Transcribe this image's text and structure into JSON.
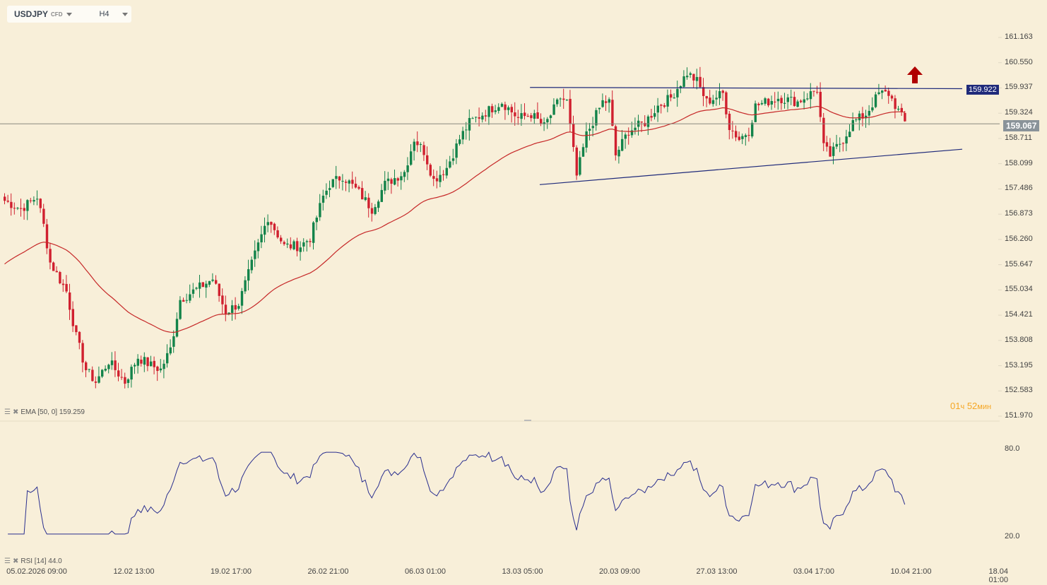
{
  "header": {
    "symbol": "USDJPY",
    "symbol_type": "CFD",
    "timeframe": "H4"
  },
  "indicators": {
    "ema_label": "EMA [50, 0] 159.259",
    "rsi_label": "RSI [14] 44.0"
  },
  "timer": {
    "hours": "01",
    "hours_unit": "ч",
    "minutes": "52",
    "minutes_unit": "мин"
  },
  "tags": {
    "resistance": "159.922",
    "current": "159.067"
  },
  "colors": {
    "up": "#13834a",
    "down": "#d0202f",
    "ema": "#c62828",
    "rsi": "#2a2f8f",
    "lines": "#1f2a7a",
    "bg": "#f8efd9"
  },
  "chart_data": {
    "type": "candlestick",
    "price_axis": [
      "161.163",
      "160.550",
      "159.937",
      "159.324",
      "158.711",
      "158.099",
      "157.486",
      "156.873",
      "156.260",
      "155.647",
      "155.034",
      "154.421",
      "153.808",
      "153.195",
      "152.583",
      "151.970"
    ],
    "price_range": [
      151.97,
      161.163
    ],
    "rsi_axis": [
      "80.0",
      "20.0"
    ],
    "rsi_range": [
      20,
      80
    ],
    "x_labels": [
      "05.02.2026 09:00",
      "12.02 13:00",
      "19.02 17:00",
      "26.02 21:00",
      "06.03 01:00",
      "13.03 05:00",
      "20.03 09:00",
      "27.03 13:00",
      "03.04 17:00",
      "10.04 21:00",
      "18.04 01:00"
    ],
    "bars": 278,
    "close_path": [
      [
        0,
        157.2
      ],
      [
        5,
        157.0
      ],
      [
        10,
        157.3
      ],
      [
        12,
        156.6
      ],
      [
        14,
        155.7
      ],
      [
        19,
        155.0
      ],
      [
        22,
        153.9
      ],
      [
        25,
        153.1
      ],
      [
        28,
        152.8
      ],
      [
        32,
        153.3
      ],
      [
        37,
        152.8
      ],
      [
        41,
        153.4
      ],
      [
        45,
        153.2
      ],
      [
        48,
        153.1
      ],
      [
        51,
        153.6
      ],
      [
        54,
        154.8
      ],
      [
        60,
        155.1
      ],
      [
        64,
        155.3
      ],
      [
        68,
        154.5
      ],
      [
        72,
        154.7
      ],
      [
        77,
        155.9
      ],
      [
        81,
        156.8
      ],
      [
        86,
        156.1
      ],
      [
        91,
        156.1
      ],
      [
        94,
        156.3
      ],
      [
        98,
        157.3
      ],
      [
        100,
        157.6
      ],
      [
        104,
        157.8
      ],
      [
        109,
        157.4
      ],
      [
        113,
        157.0
      ],
      [
        117,
        157.6
      ],
      [
        123,
        157.9
      ],
      [
        126,
        158.7
      ],
      [
        129,
        158.4
      ],
      [
        132,
        157.7
      ],
      [
        136,
        158.0
      ],
      [
        140,
        158.7
      ],
      [
        143,
        159.1
      ],
      [
        149,
        159.4
      ],
      [
        153,
        159.6
      ],
      [
        158,
        159.2
      ],
      [
        162,
        159.3
      ],
      [
        166,
        159.0
      ],
      [
        171,
        159.7
      ],
      [
        173,
        159.6
      ],
      [
        175,
        158.4
      ],
      [
        176,
        157.8
      ],
      [
        179,
        158.8
      ],
      [
        184,
        159.6
      ],
      [
        186,
        159.6
      ],
      [
        188,
        158.3
      ],
      [
        192,
        158.9
      ],
      [
        197,
        159.1
      ],
      [
        201,
        159.5
      ],
      [
        205,
        159.7
      ],
      [
        210,
        160.3
      ],
      [
        213,
        160.1
      ],
      [
        216,
        159.6
      ],
      [
        221,
        159.8
      ],
      [
        223,
        159.0
      ],
      [
        226,
        158.7
      ],
      [
        229,
        158.9
      ],
      [
        231,
        159.5
      ],
      [
        238,
        159.7
      ],
      [
        244,
        159.6
      ],
      [
        248,
        159.8
      ],
      [
        250,
        159.9
      ],
      [
        252,
        158.5
      ],
      [
        254,
        158.3
      ],
      [
        258,
        158.7
      ],
      [
        261,
        159.1
      ],
      [
        265,
        159.3
      ],
      [
        269,
        159.8
      ],
      [
        272,
        159.8
      ],
      [
        277,
        159.1
      ]
    ],
    "ema_period": 50,
    "ema_seed": 155.6,
    "ema_last": 159.259,
    "rsi_period": 14,
    "rsi_last": 44.0,
    "resistance_line": {
      "from": [
        162,
        159.95
      ],
      "to": [
        295,
        159.92
      ]
    },
    "support_line": {
      "from": [
        165,
        157.59
      ],
      "to": [
        295,
        158.45
      ]
    },
    "current_price": 159.067
  }
}
